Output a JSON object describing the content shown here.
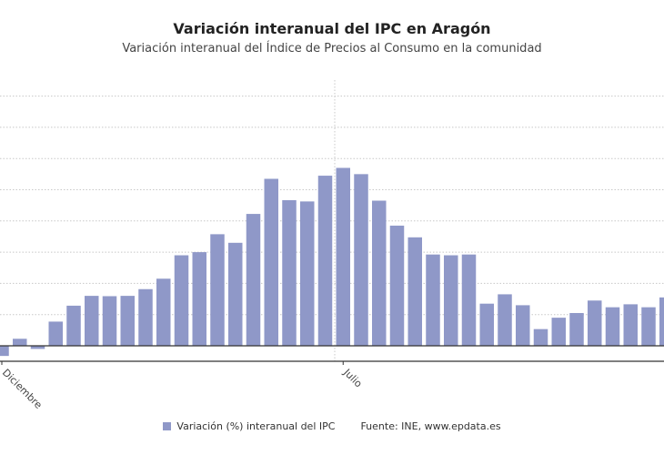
{
  "title": "Variación interanual del IPC en Aragón",
  "subtitle": "Variación interanual del Índice de Precios al Consumo en la comunidad",
  "legend": {
    "series_label": "Variación (%) interanual del IPC",
    "source": "Fuente: INE, www.epdata.es"
  },
  "colors": {
    "bar": "#8f98c8",
    "grid": "#c8c8c8",
    "axis": "#333333"
  },
  "chart_data": {
    "type": "bar",
    "title": "Variación interanual del IPC en Aragón",
    "ylabel": "Variación (%) interanual del IPC",
    "ylim": [
      -1,
      17
    ],
    "grid_step": 2,
    "grid": true,
    "legend_position": "bottom",
    "tick_labels": [
      {
        "index": 0,
        "label": "Diciembre"
      },
      {
        "index": 19,
        "label": "Julio"
      }
    ],
    "values": [
      -0.65,
      0.45,
      -0.2,
      1.55,
      2.57,
      3.2,
      3.18,
      3.2,
      3.63,
      4.3,
      5.8,
      6.0,
      7.15,
      6.6,
      8.45,
      10.7,
      9.33,
      9.25,
      10.9,
      11.4,
      11.0,
      9.3,
      7.7,
      6.95,
      5.85,
      5.8,
      5.85,
      2.7,
      3.3,
      2.6,
      1.07,
      1.8,
      2.1,
      2.9,
      2.47,
      2.66,
      2.47,
      3.1
    ]
  }
}
